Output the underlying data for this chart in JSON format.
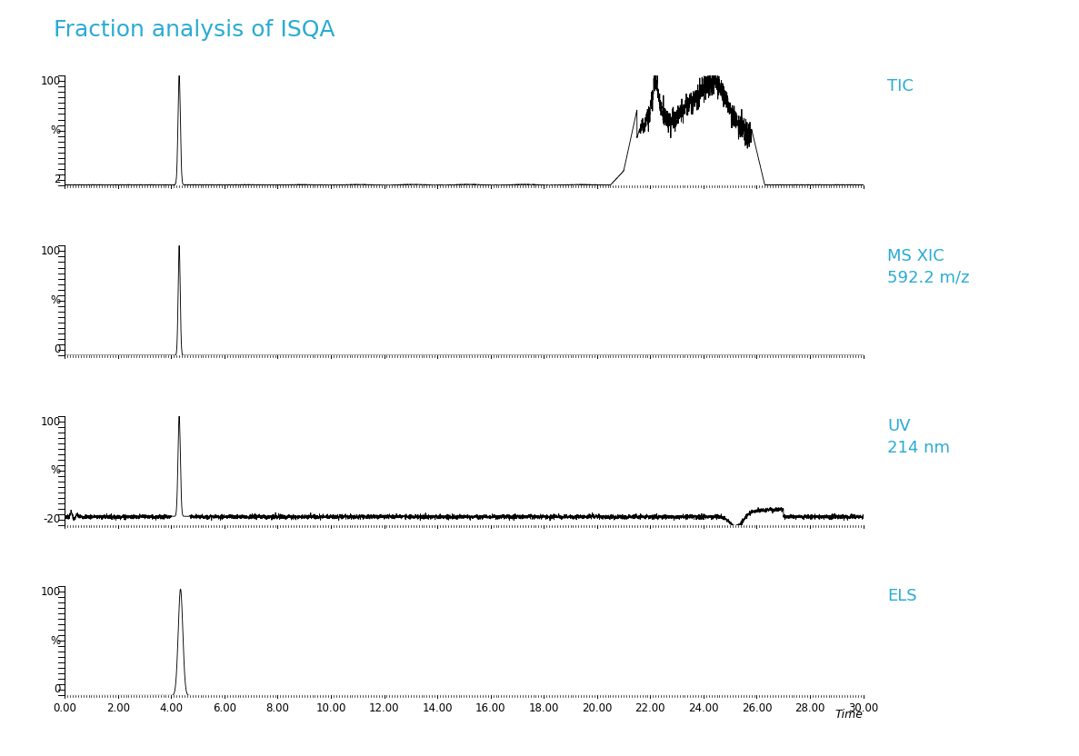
{
  "title": "Fraction analysis of ISQA",
  "title_color": "#29ABD4",
  "title_fontsize": 18,
  "background_color": "#ffffff",
  "line_color": "#000000",
  "label_color": "#29ABD4",
  "x_min": 0.0,
  "x_max": 30.0,
  "x_ticks": [
    0.0,
    2.0,
    4.0,
    6.0,
    8.0,
    10.0,
    12.0,
    14.0,
    16.0,
    18.0,
    20.0,
    22.0,
    24.0,
    26.0,
    28.0,
    30.0
  ],
  "panels": [
    {
      "label": "TIC",
      "label_lines": 1,
      "y_min": 2,
      "y_max": 100,
      "baseline": 2
    },
    {
      "label": "MS XIC\n592.2 m/z",
      "label_lines": 2,
      "y_min": 0,
      "y_max": 100,
      "baseline": 0
    },
    {
      "label": "UV\n214 nm",
      "label_lines": 2,
      "y_min": -20,
      "y_max": 100,
      "baseline": -20
    },
    {
      "label": "ELS",
      "label_lines": 1,
      "y_min": 0,
      "y_max": 100,
      "baseline": 0
    }
  ]
}
